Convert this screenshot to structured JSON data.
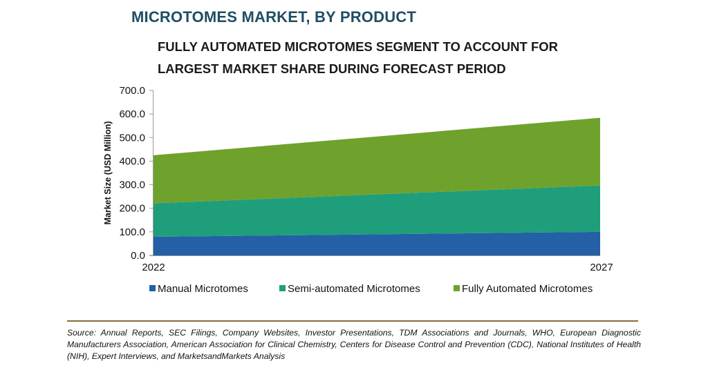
{
  "title": "MICROTOMES MARKET, BY PRODUCT",
  "subtitle": "FULLY AUTOMATED MICROTOMES SEGMENT TO ACCOUNT FOR LARGEST MARKET SHARE DURING FORECAST PERIOD",
  "source": "Source: Annual Reports, SEC Filings, Company Websites, Investor Presentations, TDM Associations and Journals, WHO, European Diagnostic Manufacturers Association, American Association for Clinical Chemistry, Centers for Disease Control and Prevention (CDC), National Institutes of Health (NIH), Expert Interviews, and MarketsandMarkets Analysis",
  "chart_data": {
    "type": "area",
    "stacked": true,
    "x": [
      "2022",
      "2027"
    ],
    "ylabel": "Market Size (USD Million)",
    "xlabel": "",
    "ylim": [
      0,
      700
    ],
    "yticks": [
      "0.0",
      "100.0",
      "200.0",
      "300.0",
      "400.0",
      "500.0",
      "600.0",
      "700.0"
    ],
    "grid": false,
    "legend_position": "bottom",
    "series": [
      {
        "name": "Manual Microtomes",
        "values": [
          79,
          100
        ],
        "color": "#2360a5"
      },
      {
        "name": "Semi-automated Microtomes",
        "values": [
          142,
          197
        ],
        "color": "#1f9e7c"
      },
      {
        "name": "Fully Automated Microtomes",
        "values": [
          204,
          287
        ],
        "color": "#6fa22c"
      }
    ]
  }
}
